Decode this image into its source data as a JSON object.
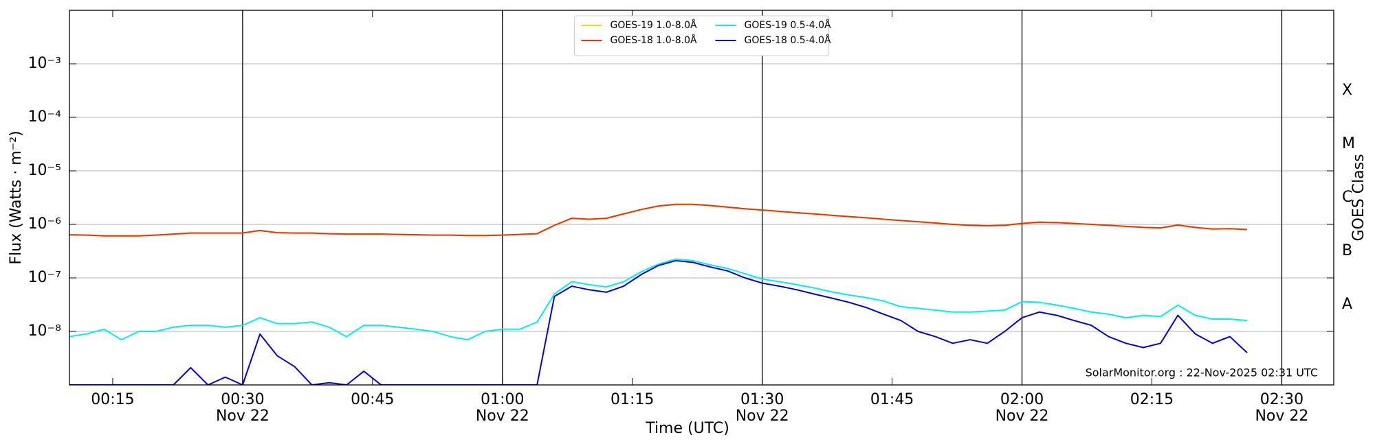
{
  "chart_data": {
    "type": "line",
    "ylabel": "Flux (Watts · m⁻²)",
    "xlabel": "Time (UTC)",
    "y2label": "GOES Class",
    "annotation": "SolarMonitor.org : 22-Nov-2025 02:31 UTC",
    "yscale": "log",
    "grid": true,
    "legend": "upper center",
    "xlim": [
      "00:10",
      "02:36"
    ],
    "xticks": [
      {
        "value": "00:15",
        "label": [
          "00:15"
        ]
      },
      {
        "value": "00:30",
        "label": [
          "00:30",
          "Nov 22"
        ]
      },
      {
        "value": "00:45",
        "label": [
          "00:45"
        ]
      },
      {
        "value": "01:00",
        "label": [
          "01:00",
          "Nov 22"
        ]
      },
      {
        "value": "01:15",
        "label": [
          "01:15"
        ]
      },
      {
        "value": "01:30",
        "label": [
          "01:30",
          "Nov 22"
        ]
      },
      {
        "value": "01:45",
        "label": [
          "01:45"
        ]
      },
      {
        "value": "02:00",
        "label": [
          "02:00",
          "Nov 22"
        ]
      },
      {
        "value": "02:15",
        "label": [
          "02:15"
        ]
      },
      {
        "value": "02:30",
        "label": [
          "02:30",
          "Nov 22"
        ]
      }
    ],
    "ylim": [
      1e-09,
      0.01
    ],
    "yticks": [
      {
        "value": 0.001,
        "label": "10⁻³"
      },
      {
        "value": 0.0001,
        "label": "10⁻⁴"
      },
      {
        "value": 1e-05,
        "label": "10⁻⁵"
      },
      {
        "value": 1e-06,
        "label": "10⁻⁶"
      },
      {
        "value": 1e-07,
        "label": "10⁻⁷"
      },
      {
        "value": 1e-08,
        "label": "10⁻⁸"
      }
    ],
    "y2lim": [
      1e-09,
      0.01
    ],
    "y2ticks": [
      {
        "value": 3.16e-08,
        "label": "A"
      },
      {
        "value": 3.16e-07,
        "label": "B"
      },
      {
        "value": 3.16e-06,
        "label": "C"
      },
      {
        "value": 3.16e-05,
        "label": "M"
      },
      {
        "value": 0.000316,
        "label": "X"
      }
    ],
    "x": [
      "00:10",
      "00:12",
      "00:14",
      "00:16",
      "00:18",
      "00:20",
      "00:22",
      "00:24",
      "00:26",
      "00:28",
      "00:30",
      "00:32",
      "00:34",
      "00:36",
      "00:38",
      "00:40",
      "00:42",
      "00:44",
      "00:46",
      "00:48",
      "00:50",
      "00:52",
      "00:54",
      "00:56",
      "00:58",
      "01:00",
      "01:02",
      "01:04",
      "01:06",
      "01:08",
      "01:10",
      "01:12",
      "01:14",
      "01:16",
      "01:18",
      "01:20",
      "01:22",
      "01:24",
      "01:26",
      "01:28",
      "01:30",
      "01:32",
      "01:34",
      "01:36",
      "01:38",
      "01:40",
      "01:42",
      "01:44",
      "01:46",
      "01:48",
      "01:50",
      "01:52",
      "01:54",
      "01:56",
      "01:58",
      "02:00",
      "02:02",
      "02:04",
      "02:06",
      "02:08",
      "02:10",
      "02:12",
      "02:14",
      "02:16",
      "02:18",
      "02:20",
      "02:22",
      "02:24",
      "02:26"
    ],
    "series": [
      {
        "name": "GOES-19 1.0-8.0Å",
        "color": "#ffd700",
        "values": [
          6.4e-07,
          6.3e-07,
          6.1e-07,
          6.1e-07,
          6.1e-07,
          6.3e-07,
          6.6e-07,
          6.9e-07,
          6.9e-07,
          6.9e-07,
          6.9e-07,
          7.7e-07,
          7e-07,
          6.9e-07,
          6.9e-07,
          6.7e-07,
          6.6e-07,
          6.6e-07,
          6.6e-07,
          6.5e-07,
          6.4e-07,
          6.3e-07,
          6.3e-07,
          6.2e-07,
          6.2e-07,
          6.3e-07,
          6.5e-07,
          6.7e-07,
          9.6e-07,
          1.3e-06,
          1.25e-06,
          1.3e-06,
          1.57e-06,
          1.89e-06,
          2.2e-06,
          2.37e-06,
          2.37e-06,
          2.25e-06,
          2.1e-06,
          1.96e-06,
          1.85e-06,
          1.75e-06,
          1.65e-06,
          1.57e-06,
          1.48e-06,
          1.4e-06,
          1.33e-06,
          1.25e-06,
          1.18e-06,
          1.12e-06,
          1.06e-06,
          1e-06,
          9.6e-07,
          9.4e-07,
          9.6e-07,
          1.04e-06,
          1.1e-06,
          1.08e-06,
          1.04e-06,
          1e-06,
          9.6e-07,
          9.2e-07,
          8.8e-07,
          8.6e-07,
          9.7e-07,
          8.8e-07,
          8.2e-07,
          8.3e-07,
          8e-07
        ]
      },
      {
        "name": "GOES-18 1.0-8.0Å",
        "color": "#f53100",
        "values": [
          6.4e-07,
          6.3e-07,
          6.1e-07,
          6.1e-07,
          6.1e-07,
          6.3e-07,
          6.6e-07,
          6.9e-07,
          6.9e-07,
          6.9e-07,
          6.9e-07,
          7.7e-07,
          7e-07,
          6.9e-07,
          6.9e-07,
          6.7e-07,
          6.6e-07,
          6.6e-07,
          6.6e-07,
          6.5e-07,
          6.4e-07,
          6.3e-07,
          6.3e-07,
          6.2e-07,
          6.2e-07,
          6.3e-07,
          6.5e-07,
          6.7e-07,
          9.6e-07,
          1.3e-06,
          1.25e-06,
          1.3e-06,
          1.57e-06,
          1.89e-06,
          2.2e-06,
          2.37e-06,
          2.37e-06,
          2.25e-06,
          2.1e-06,
          1.96e-06,
          1.85e-06,
          1.75e-06,
          1.65e-06,
          1.57e-06,
          1.48e-06,
          1.4e-06,
          1.33e-06,
          1.25e-06,
          1.18e-06,
          1.12e-06,
          1.06e-06,
          1e-06,
          9.6e-07,
          9.4e-07,
          9.6e-07,
          1.04e-06,
          1.1e-06,
          1.08e-06,
          1.04e-06,
          1e-06,
          9.6e-07,
          9.2e-07,
          8.8e-07,
          8.6e-07,
          9.7e-07,
          8.8e-07,
          8.2e-07,
          8.3e-07,
          8e-07
        ]
      },
      {
        "name": "GOES-19 0.5-4.0Å",
        "color": "#00f0f0",
        "values": [
          8e-09,
          9e-09,
          1.1e-08,
          7e-09,
          1e-08,
          1e-08,
          1.2e-08,
          1.3e-08,
          1.3e-08,
          1.2e-08,
          1.3e-08,
          1.8e-08,
          1.4e-08,
          1.4e-08,
          1.5e-08,
          1.2e-08,
          8e-09,
          1.3e-08,
          1.3e-08,
          1.2e-08,
          1.1e-08,
          1e-08,
          8e-09,
          7e-09,
          1e-08,
          1.1e-08,
          1.1e-08,
          1.5e-08,
          5e-08,
          8.5e-08,
          7.5e-08,
          6.8e-08,
          8.5e-08,
          1.3e-07,
          1.8e-07,
          2.25e-07,
          2.1e-07,
          1.75e-07,
          1.5e-07,
          1.2e-07,
          9.5e-08,
          8.5e-08,
          7.5e-08,
          6.5e-08,
          5.5e-08,
          4.8e-08,
          4.3e-08,
          3.7e-08,
          2.9e-08,
          2.7e-08,
          2.5e-08,
          2.3e-08,
          2.3e-08,
          2.4e-08,
          2.5e-08,
          3.6e-08,
          3.5e-08,
          3.1e-08,
          2.7e-08,
          2.3e-08,
          2.1e-08,
          1.8e-08,
          2e-08,
          1.9e-08,
          3.1e-08,
          2e-08,
          1.7e-08,
          1.7e-08,
          1.6e-08
        ]
      },
      {
        "name": "GOES-18 0.5-4.0Å",
        "color": "#0000dd",
        "values": [
          1e-09,
          1e-09,
          1e-09,
          1e-09,
          1e-09,
          1e-09,
          1e-09,
          2.1e-09,
          1e-09,
          1.4e-09,
          1e-09,
          8.9e-09,
          3.5e-09,
          2.2e-09,
          1e-09,
          1.1e-09,
          1e-09,
          1.8e-09,
          1e-09,
          1e-09,
          1e-09,
          1e-09,
          1e-09,
          1e-09,
          1e-09,
          1e-09,
          1e-09,
          1e-09,
          4.5e-08,
          7e-08,
          6e-08,
          5.4e-08,
          7e-08,
          1.15e-07,
          1.7e-07,
          2.1e-07,
          1.95e-07,
          1.6e-07,
          1.35e-07,
          1e-07,
          8e-08,
          7e-08,
          6e-08,
          5e-08,
          4.2e-08,
          3.5e-08,
          2.8e-08,
          2.1e-08,
          1.6e-08,
          1e-08,
          8e-09,
          6e-09,
          7e-09,
          6e-09,
          1e-08,
          1.8e-08,
          2.3e-08,
          2e-08,
          1.6e-08,
          1.3e-08,
          8e-09,
          6e-09,
          5e-09,
          6e-09,
          2e-08,
          9e-09,
          6e-09,
          8e-09,
          4e-09
        ]
      }
    ]
  }
}
